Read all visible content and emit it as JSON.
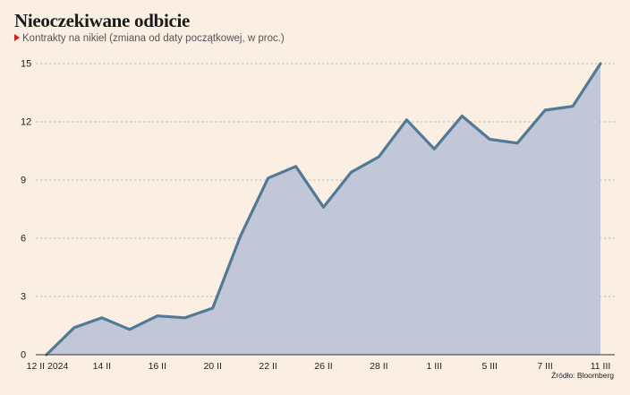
{
  "title": "Nieoczekiwane odbicie",
  "subtitle": "Kontrakty na nikiel (zmiana od daty początkowej, w proc.)",
  "source": "Źródło: Bloomberg",
  "colors": {
    "line": "#517a96",
    "area": "#c1c7d7",
    "grid": "#a9a9a9",
    "accent": "#d0221c",
    "background": "#fbefe4"
  },
  "chart_data": {
    "type": "area",
    "title": "Nieoczekiwane odbicie",
    "subtitle": "Kontrakty na nikiel (zmiana od daty początkowej, w proc.)",
    "ylim": [
      0,
      15
    ],
    "yticks": [
      0,
      3,
      6,
      9,
      12,
      15
    ],
    "x_tick_labels": [
      "12 II 2024",
      "14 II",
      "16 II",
      "20 II",
      "22 II",
      "26 II",
      "28 II",
      "1 III",
      "5 III",
      "7 III",
      "11 III"
    ],
    "grid": true,
    "series": [
      {
        "x": [
          "12 II",
          "13 II",
          "14 II",
          "15 II",
          "16 II",
          "19 II",
          "20 II",
          "21 II",
          "22 II",
          "23 II",
          "26 II",
          "27 II",
          "28 II",
          "29 II",
          "1 III",
          "4 III",
          "5 III",
          "6 III",
          "7 III",
          "8 III",
          "11 III"
        ],
        "values": [
          0,
          1.4,
          1.9,
          1.3,
          2.0,
          1.9,
          2.4,
          6.1,
          9.1,
          9.7,
          7.6,
          9.4,
          10.2,
          12.1,
          10.6,
          12.3,
          11.1,
          10.9,
          12.6,
          12.8,
          15.0
        ]
      }
    ]
  }
}
